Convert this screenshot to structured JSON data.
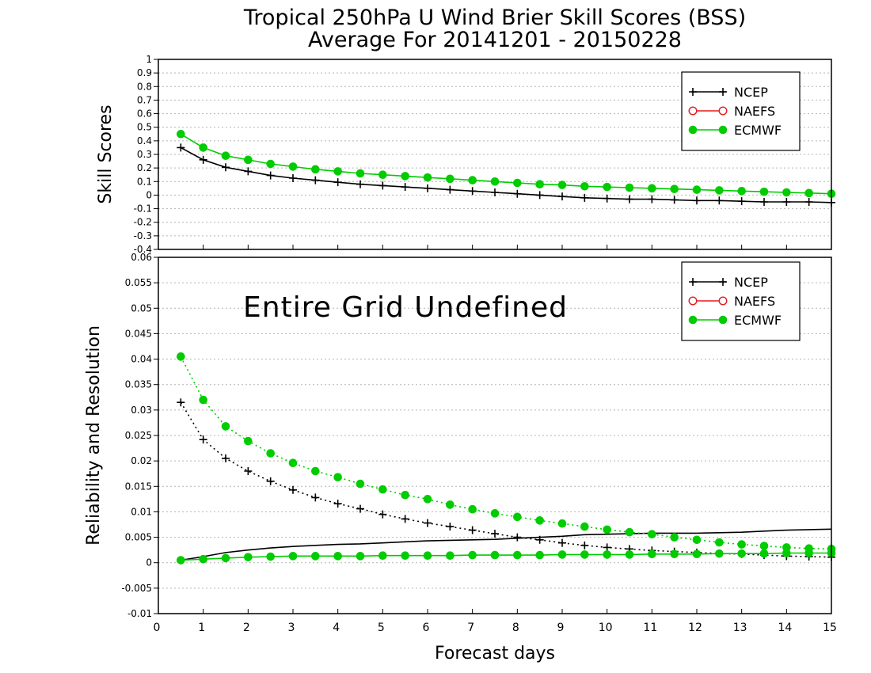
{
  "title": {
    "line1": "Tropical 250hPa U Wind Brier Skill Scores (BSS)",
    "line2": "Average For 20141201 - 20150228"
  },
  "xlabel": "Forecast days",
  "colors": {
    "NCEP": "#000000",
    "NAEFS": "#e41a1c",
    "ECMWF": "#00cc00"
  },
  "chart_data": [
    {
      "type": "line",
      "panel": "top",
      "ylabel": "Skill Scores",
      "xlim": [
        0,
        15
      ],
      "ylim": [
        -0.4,
        1
      ],
      "yticks": [
        "1",
        "0.9",
        "0.8",
        "0.7",
        "0.6",
        "0.5",
        "0.4",
        "0.3",
        "0.2",
        "0.1",
        "0",
        "-0.1",
        "-0.2",
        "-0.3",
        "-0.4"
      ],
      "xticks": [
        "0",
        "1",
        "2",
        "3",
        "4",
        "5",
        "6",
        "7",
        "8",
        "9",
        "10",
        "11",
        "12",
        "13",
        "14",
        "15"
      ],
      "legend": {
        "placement": "top-right",
        "entries": [
          "NCEP",
          "NAEFS",
          "ECMWF"
        ]
      },
      "x": [
        0.5,
        1,
        1.5,
        2,
        2.5,
        3,
        3.5,
        4,
        4.5,
        5,
        5.5,
        6,
        6.5,
        7,
        7.5,
        8,
        8.5,
        9,
        9.5,
        10,
        10.5,
        11,
        11.5,
        12,
        12.5,
        13,
        13.5,
        14,
        14.5,
        15
      ],
      "series": [
        {
          "name": "NCEP",
          "style": "solid-plus",
          "values": [
            0.35,
            0.26,
            0.205,
            0.175,
            0.145,
            0.125,
            0.11,
            0.095,
            0.08,
            0.07,
            0.06,
            0.05,
            0.04,
            0.03,
            0.02,
            0.01,
            0.0,
            -0.01,
            -0.02,
            -0.025,
            -0.03,
            -0.03,
            -0.035,
            -0.04,
            -0.04,
            -0.045,
            -0.05,
            -0.05,
            -0.05,
            -0.055
          ]
        },
        {
          "name": "ECMWF",
          "style": "solid-dot",
          "values": [
            0.45,
            0.35,
            0.29,
            0.26,
            0.23,
            0.21,
            0.19,
            0.175,
            0.16,
            0.15,
            0.14,
            0.13,
            0.12,
            0.11,
            0.1,
            0.09,
            0.08,
            0.075,
            0.065,
            0.06,
            0.055,
            0.05,
            0.045,
            0.04,
            0.035,
            0.03,
            0.025,
            0.02,
            0.015,
            0.01
          ]
        }
      ]
    },
    {
      "type": "line",
      "panel": "bottom",
      "ylabel": "Reliability and Resolution",
      "annotation": "Entire Grid Undefined",
      "xlim": [
        0,
        15
      ],
      "ylim": [
        -0.01,
        0.06
      ],
      "yticks": [
        "0.06",
        "0.055",
        "0.05",
        "0.045",
        "0.04",
        "0.035",
        "0.03",
        "0.025",
        "0.02",
        "0.015",
        "0.01",
        "0.005",
        "0",
        "-0.005",
        "-0.01"
      ],
      "xticks": [
        "0",
        "1",
        "2",
        "3",
        "4",
        "5",
        "6",
        "7",
        "8",
        "9",
        "10",
        "11",
        "12",
        "13",
        "14",
        "15"
      ],
      "legend": {
        "placement": "top-right",
        "entries": [
          "NCEP",
          "NAEFS",
          "ECMWF"
        ]
      },
      "x": [
        0.5,
        1,
        1.5,
        2,
        2.5,
        3,
        3.5,
        4,
        4.5,
        5,
        5.5,
        6,
        6.5,
        7,
        7.5,
        8,
        8.5,
        9,
        9.5,
        10,
        10.5,
        11,
        11.5,
        12,
        12.5,
        13,
        13.5,
        14,
        14.5,
        15
      ],
      "series": [
        {
          "name": "NCEP",
          "metric": "reliability",
          "style": "dotted-plus",
          "values": [
            0.0315,
            0.0242,
            0.0205,
            0.018,
            0.016,
            0.0143,
            0.0128,
            0.0116,
            0.0106,
            0.0095,
            0.0086,
            0.0078,
            0.0071,
            0.0064,
            0.0057,
            0.005,
            0.0045,
            0.0039,
            0.0034,
            0.003,
            0.0027,
            0.0024,
            0.0022,
            0.002,
            0.0018,
            0.0017,
            0.0015,
            0.0013,
            0.0012,
            0.0011
          ]
        },
        {
          "name": "NCEP",
          "metric": "resolution",
          "style": "solid",
          "values": [
            0.0005,
            0.0012,
            0.002,
            0.0025,
            0.0029,
            0.0032,
            0.0034,
            0.0036,
            0.0037,
            0.0039,
            0.0041,
            0.0043,
            0.0044,
            0.0045,
            0.0046,
            0.0048,
            0.005,
            0.0052,
            0.0055,
            0.0056,
            0.0057,
            0.0058,
            0.0058,
            0.0058,
            0.0059,
            0.006,
            0.0062,
            0.0064,
            0.0065,
            0.0066
          ]
        },
        {
          "name": "ECMWF",
          "metric": "reliability",
          "style": "dotted-dot",
          "values": [
            0.0405,
            0.032,
            0.0268,
            0.0239,
            0.0215,
            0.0196,
            0.018,
            0.0168,
            0.0155,
            0.0144,
            0.0133,
            0.0125,
            0.0114,
            0.0105,
            0.0097,
            0.009,
            0.0083,
            0.0077,
            0.0071,
            0.0065,
            0.006,
            0.0056,
            0.005,
            0.0045,
            0.004,
            0.0036,
            0.0033,
            0.003,
            0.0028,
            0.0027
          ]
        },
        {
          "name": "ECMWF",
          "metric": "resolution",
          "style": "solid-dot",
          "values": [
            0.0005,
            0.0007,
            0.0009,
            0.0011,
            0.0012,
            0.0013,
            0.0013,
            0.0013,
            0.0013,
            0.0014,
            0.0014,
            0.0014,
            0.0014,
            0.0015,
            0.0015,
            0.0015,
            0.0015,
            0.0016,
            0.0016,
            0.0016,
            0.0016,
            0.0017,
            0.0017,
            0.0017,
            0.0018,
            0.0018,
            0.0018,
            0.0019,
            0.0019,
            0.0019
          ]
        }
      ]
    }
  ]
}
